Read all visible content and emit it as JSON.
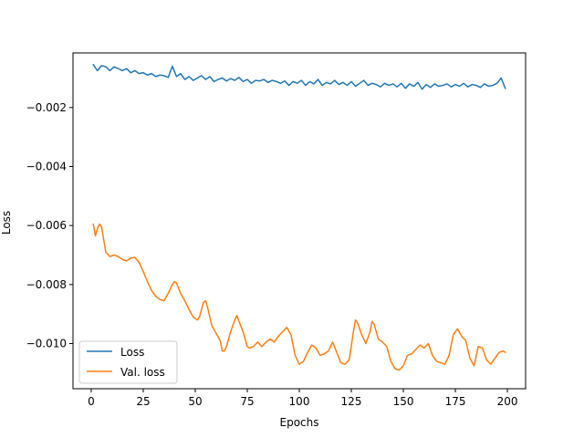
{
  "chart_data": {
    "type": "line",
    "title": "",
    "xlabel": "Epochs",
    "ylabel": "Loss",
    "xlim": [
      -8.75,
      208.75
    ],
    "ylim": [
      -0.01153,
      -0.00015
    ],
    "xticks": [
      0,
      25,
      50,
      75,
      100,
      125,
      150,
      175,
      200
    ],
    "xtick_labels": [
      "0",
      "25",
      "50",
      "75",
      "100",
      "125",
      "150",
      "175",
      "200"
    ],
    "yticks": [
      -0.002,
      -0.004,
      -0.006,
      -0.008,
      -0.01
    ],
    "ytick_labels": [
      "−0.002",
      "−0.004",
      "−0.006",
      "−0.008",
      "−0.010"
    ],
    "grid": false,
    "legend_position": "lower-left",
    "series": [
      {
        "name": "Loss",
        "color": "#1f77b4",
        "points": [
          [
            1,
            -0.00055
          ],
          [
            3,
            -0.00075
          ],
          [
            5,
            -0.00058
          ],
          [
            7,
            -0.00062
          ],
          [
            9,
            -0.00075
          ],
          [
            11,
            -0.00062
          ],
          [
            13,
            -0.00068
          ],
          [
            15,
            -0.00075
          ],
          [
            17,
            -0.00068
          ],
          [
            19,
            -0.00082
          ],
          [
            21,
            -0.00075
          ],
          [
            23,
            -0.00085
          ],
          [
            25,
            -0.00082
          ],
          [
            27,
            -0.0009
          ],
          [
            29,
            -0.00085
          ],
          [
            31,
            -0.00095
          ],
          [
            33,
            -0.0009
          ],
          [
            35,
            -0.00092
          ],
          [
            37,
            -0.00098
          ],
          [
            39,
            -0.0006
          ],
          [
            41,
            -0.00095
          ],
          [
            43,
            -0.00085
          ],
          [
            45,
            -0.00105
          ],
          [
            47,
            -0.00095
          ],
          [
            49,
            -0.00108
          ],
          [
            51,
            -0.001
          ],
          [
            53,
            -0.00092
          ],
          [
            55,
            -0.00105
          ],
          [
            57,
            -0.00095
          ],
          [
            59,
            -0.00112
          ],
          [
            61,
            -0.00105
          ],
          [
            63,
            -0.001
          ],
          [
            65,
            -0.0011
          ],
          [
            67,
            -0.00102
          ],
          [
            69,
            -0.00108
          ],
          [
            71,
            -0.00098
          ],
          [
            73,
            -0.00112
          ],
          [
            75,
            -0.00105
          ],
          [
            77,
            -0.00118
          ],
          [
            79,
            -0.00108
          ],
          [
            81,
            -0.0011
          ],
          [
            83,
            -0.00105
          ],
          [
            85,
            -0.00115
          ],
          [
            87,
            -0.00108
          ],
          [
            89,
            -0.00112
          ],
          [
            91,
            -0.00118
          ],
          [
            93,
            -0.0011
          ],
          [
            95,
            -0.00125
          ],
          [
            97,
            -0.00112
          ],
          [
            99,
            -0.00118
          ],
          [
            101,
            -0.00108
          ],
          [
            103,
            -0.00125
          ],
          [
            105,
            -0.00112
          ],
          [
            107,
            -0.0012
          ],
          [
            109,
            -0.00105
          ],
          [
            111,
            -0.00125
          ],
          [
            113,
            -0.00115
          ],
          [
            115,
            -0.0012
          ],
          [
            117,
            -0.00108
          ],
          [
            119,
            -0.00122
          ],
          [
            121,
            -0.00115
          ],
          [
            123,
            -0.00125
          ],
          [
            125,
            -0.00112
          ],
          [
            127,
            -0.00128
          ],
          [
            129,
            -0.00118
          ],
          [
            131,
            -0.00108
          ],
          [
            133,
            -0.00125
          ],
          [
            135,
            -0.00118
          ],
          [
            137,
            -0.00122
          ],
          [
            139,
            -0.0013
          ],
          [
            141,
            -0.00118
          ],
          [
            143,
            -0.00125
          ],
          [
            145,
            -0.0012
          ],
          [
            147,
            -0.0013
          ],
          [
            149,
            -0.00118
          ],
          [
            151,
            -0.00135
          ],
          [
            153,
            -0.0012
          ],
          [
            155,
            -0.00128
          ],
          [
            157,
            -0.00115
          ],
          [
            159,
            -0.00138
          ],
          [
            161,
            -0.00122
          ],
          [
            163,
            -0.00132
          ],
          [
            165,
            -0.0012
          ],
          [
            167,
            -0.00128
          ],
          [
            169,
            -0.00125
          ],
          [
            171,
            -0.0012
          ],
          [
            173,
            -0.0013
          ],
          [
            175,
            -0.00122
          ],
          [
            177,
            -0.00128
          ],
          [
            179,
            -0.00118
          ],
          [
            181,
            -0.0013
          ],
          [
            183,
            -0.00122
          ],
          [
            185,
            -0.00125
          ],
          [
            187,
            -0.00132
          ],
          [
            189,
            -0.0012
          ],
          [
            191,
            -0.00128
          ],
          [
            193,
            -0.00125
          ],
          [
            195,
            -0.00118
          ],
          [
            197,
            -0.001
          ],
          [
            199,
            -0.00135
          ]
        ]
      },
      {
        "name": "Val. loss",
        "color": "#ff7f0e",
        "points": [
          [
            1,
            -0.00595
          ],
          [
            2,
            -0.00635
          ],
          [
            3,
            -0.0061
          ],
          [
            4,
            -0.00595
          ],
          [
            5,
            -0.00605
          ],
          [
            7,
            -0.0069
          ],
          [
            9,
            -0.00705
          ],
          [
            11,
            -0.007
          ],
          [
            13,
            -0.00705
          ],
          [
            15,
            -0.00715
          ],
          [
            17,
            -0.0072
          ],
          [
            19,
            -0.0071
          ],
          [
            21,
            -0.00708
          ],
          [
            23,
            -0.00725
          ],
          [
            25,
            -0.00755
          ],
          [
            27,
            -0.0079
          ],
          [
            29,
            -0.0082
          ],
          [
            31,
            -0.0084
          ],
          [
            33,
            -0.0085
          ],
          [
            35,
            -0.00855
          ],
          [
            37,
            -0.0083
          ],
          [
            39,
            -0.008
          ],
          [
            40,
            -0.0079
          ],
          [
            41,
            -0.00795
          ],
          [
            43,
            -0.0083
          ],
          [
            45,
            -0.00855
          ],
          [
            47,
            -0.00885
          ],
          [
            49,
            -0.0091
          ],
          [
            51,
            -0.0092
          ],
          [
            52,
            -0.0091
          ],
          [
            54,
            -0.0086
          ],
          [
            55,
            -0.00855
          ],
          [
            56,
            -0.0088
          ],
          [
            58,
            -0.0094
          ],
          [
            60,
            -0.00965
          ],
          [
            62,
            -0.0099
          ],
          [
            63,
            -0.01025
          ],
          [
            64,
            -0.01025
          ],
          [
            65,
            -0.0101
          ],
          [
            67,
            -0.0096
          ],
          [
            69,
            -0.0092
          ],
          [
            70,
            -0.00905
          ],
          [
            71,
            -0.00925
          ],
          [
            73,
            -0.0096
          ],
          [
            75,
            -0.0101
          ],
          [
            76,
            -0.01015
          ],
          [
            78,
            -0.0101
          ],
          [
            80,
            -0.00995
          ],
          [
            82,
            -0.0101
          ],
          [
            84,
            -0.00995
          ],
          [
            86,
            -0.00985
          ],
          [
            88,
            -0.00995
          ],
          [
            90,
            -0.00975
          ],
          [
            92,
            -0.0096
          ],
          [
            94,
            -0.00945
          ],
          [
            96,
            -0.0097
          ],
          [
            98,
            -0.0104
          ],
          [
            100,
            -0.0107
          ],
          [
            102,
            -0.0106
          ],
          [
            104,
            -0.0103
          ],
          [
            106,
            -0.01005
          ],
          [
            108,
            -0.01015
          ],
          [
            110,
            -0.0104
          ],
          [
            112,
            -0.01035
          ],
          [
            114,
            -0.01025
          ],
          [
            116,
            -0.00995
          ],
          [
            118,
            -0.0103
          ],
          [
            120,
            -0.01065
          ],
          [
            122,
            -0.0107
          ],
          [
            124,
            -0.01055
          ],
          [
            126,
            -0.0096
          ],
          [
            127,
            -0.0092
          ],
          [
            128,
            -0.0093
          ],
          [
            130,
            -0.0097
          ],
          [
            132,
            -0.01
          ],
          [
            134,
            -0.0096
          ],
          [
            135,
            -0.00925
          ],
          [
            136,
            -0.00935
          ],
          [
            138,
            -0.00985
          ],
          [
            140,
            -0.00995
          ],
          [
            142,
            -0.0101
          ],
          [
            144,
            -0.0106
          ],
          [
            146,
            -0.01085
          ],
          [
            148,
            -0.0109
          ],
          [
            150,
            -0.01075
          ],
          [
            152,
            -0.0104
          ],
          [
            154,
            -0.01035
          ],
          [
            156,
            -0.0102
          ],
          [
            158,
            -0.01005
          ],
          [
            160,
            -0.01015
          ],
          [
            162,
            -0.01
          ],
          [
            164,
            -0.0104
          ],
          [
            166,
            -0.0106
          ],
          [
            168,
            -0.01065
          ],
          [
            170,
            -0.0107
          ],
          [
            172,
            -0.0104
          ],
          [
            174,
            -0.0097
          ],
          [
            176,
            -0.0095
          ],
          [
            178,
            -0.00975
          ],
          [
            180,
            -0.0099
          ],
          [
            182,
            -0.0105
          ],
          [
            184,
            -0.01075
          ],
          [
            186,
            -0.0101
          ],
          [
            188,
            -0.01015
          ],
          [
            190,
            -0.01055
          ],
          [
            192,
            -0.0107
          ],
          [
            194,
            -0.0105
          ],
          [
            196,
            -0.0103
          ],
          [
            198,
            -0.01025
          ],
          [
            199,
            -0.0103
          ]
        ]
      }
    ]
  },
  "legend": {
    "items": [
      {
        "label": "Loss",
        "color": "#1f77b4"
      },
      {
        "label": "Val. loss",
        "color": "#ff7f0e"
      }
    ]
  }
}
